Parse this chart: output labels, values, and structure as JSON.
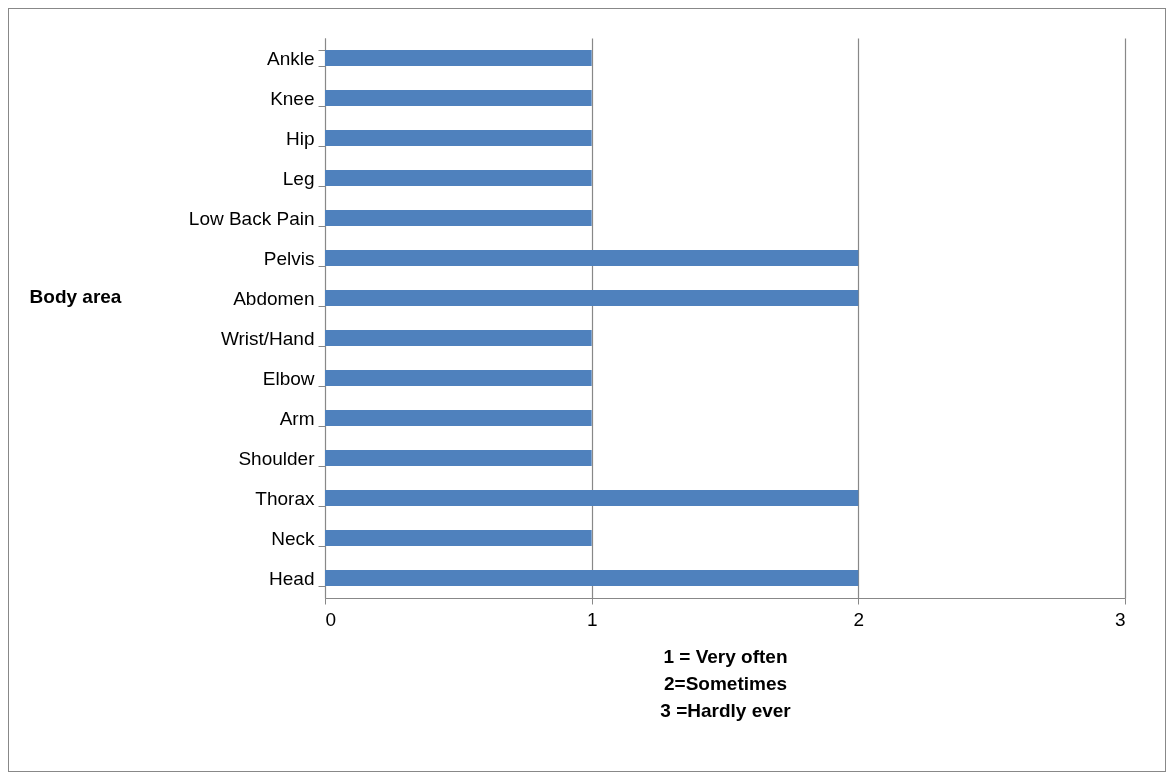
{
  "chart_data": {
    "type": "bar",
    "orientation": "horizontal",
    "xlabel": "1 = Very often\n2=Sometimes\n3 =Hardly ever",
    "ylabel": "Body area",
    "categories": [
      "Ankle",
      "Knee",
      "Hip",
      "Leg",
      "Low Back Pain",
      "Pelvis",
      "Abdomen",
      "Wrist/Hand",
      "Elbow",
      "Arm",
      "Shoulder",
      "Thorax",
      "Neck",
      "Head"
    ],
    "values": [
      1,
      1,
      1,
      1,
      1,
      2,
      2,
      1,
      1,
      1,
      1,
      2,
      1,
      2
    ],
    "color": "#4f81bd",
    "xlim": [
      0,
      3
    ],
    "xticks": [
      0,
      1,
      2,
      3
    ],
    "grid": "x"
  }
}
